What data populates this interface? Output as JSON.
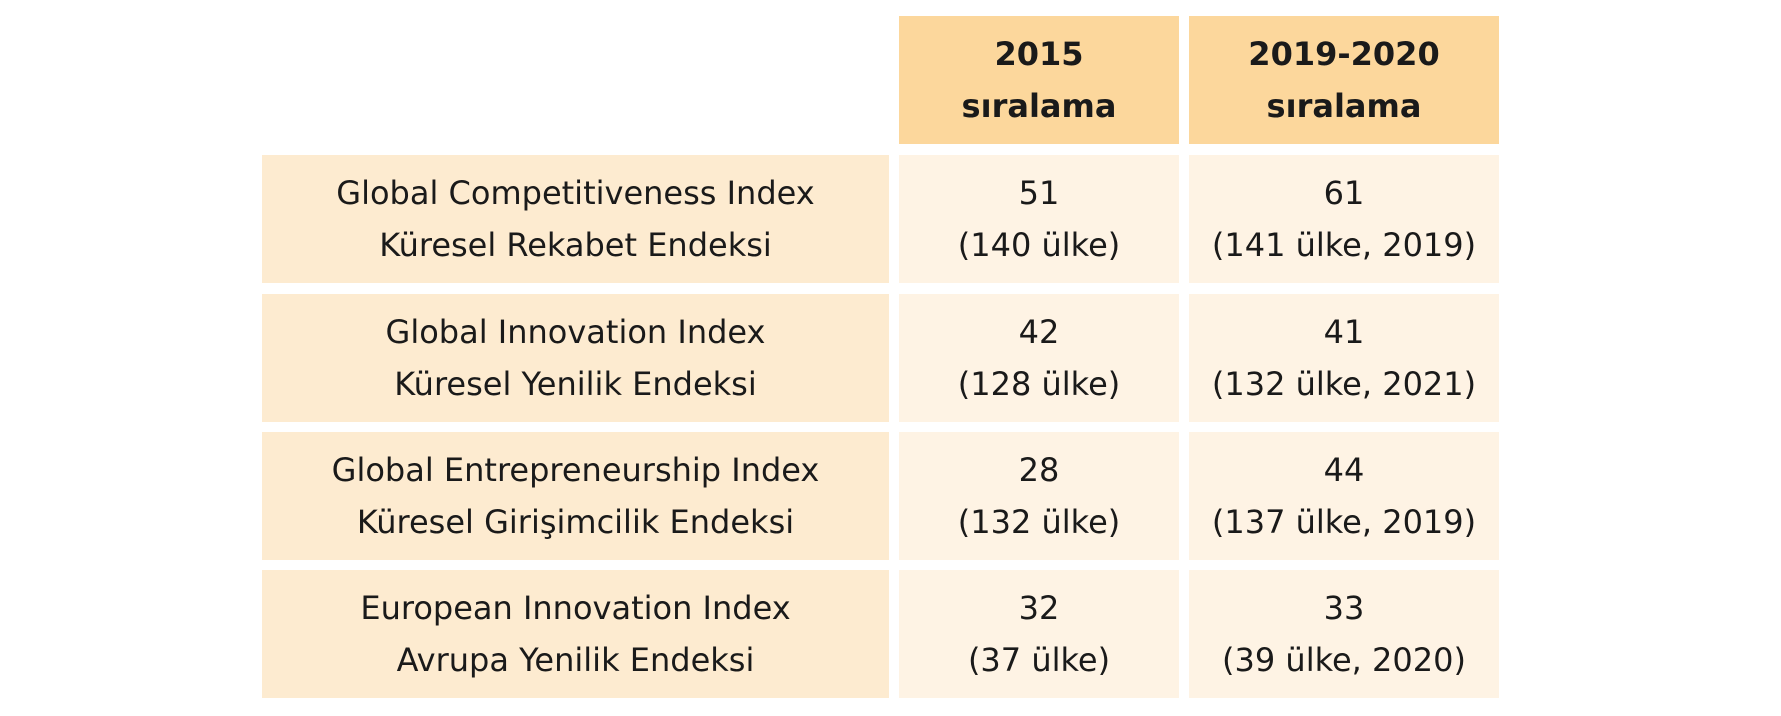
{
  "table": {
    "headers": [
      {
        "line1": "2015",
        "line2": "sıralama"
      },
      {
        "line1": "2019-2020",
        "line2": "sıralama"
      }
    ],
    "rows": [
      {
        "label_en": "Global Competitiveness Index",
        "label_tr": "Küresel Rekabet Endeksi",
        "v2015_rank": "51",
        "v2015_note": "(140 ülke)",
        "v2019_rank": "61",
        "v2019_note": "(141 ülke, 2019)"
      },
      {
        "label_en": "Global Innovation Index",
        "label_tr": "Küresel Yenilik Endeksi",
        "v2015_rank": "42",
        "v2015_note": "(128 ülke)",
        "v2019_rank": "41",
        "v2019_note": "(132 ülke, 2021)"
      },
      {
        "label_en": "Global Entrepreneurship Index",
        "label_tr": "Küresel Girişimcilik Endeksi",
        "v2015_rank": "28",
        "v2015_note": "(132 ülke)",
        "v2019_rank": "44",
        "v2019_note": "(137 ülke, 2019)"
      },
      {
        "label_en": "European Innovation Index",
        "label_tr": "Avrupa Yenilik Endeksi",
        "v2015_rank": "32",
        "v2015_note": "(37 ülke)",
        "v2019_rank": "33",
        "v2019_note": "(39 ülke, 2020)"
      }
    ]
  },
  "colors": {
    "header_bg": "#fcd79c",
    "label_bg": "#fdebd0",
    "value_bg": "#fef3e4",
    "text": "#1a1a1a"
  }
}
